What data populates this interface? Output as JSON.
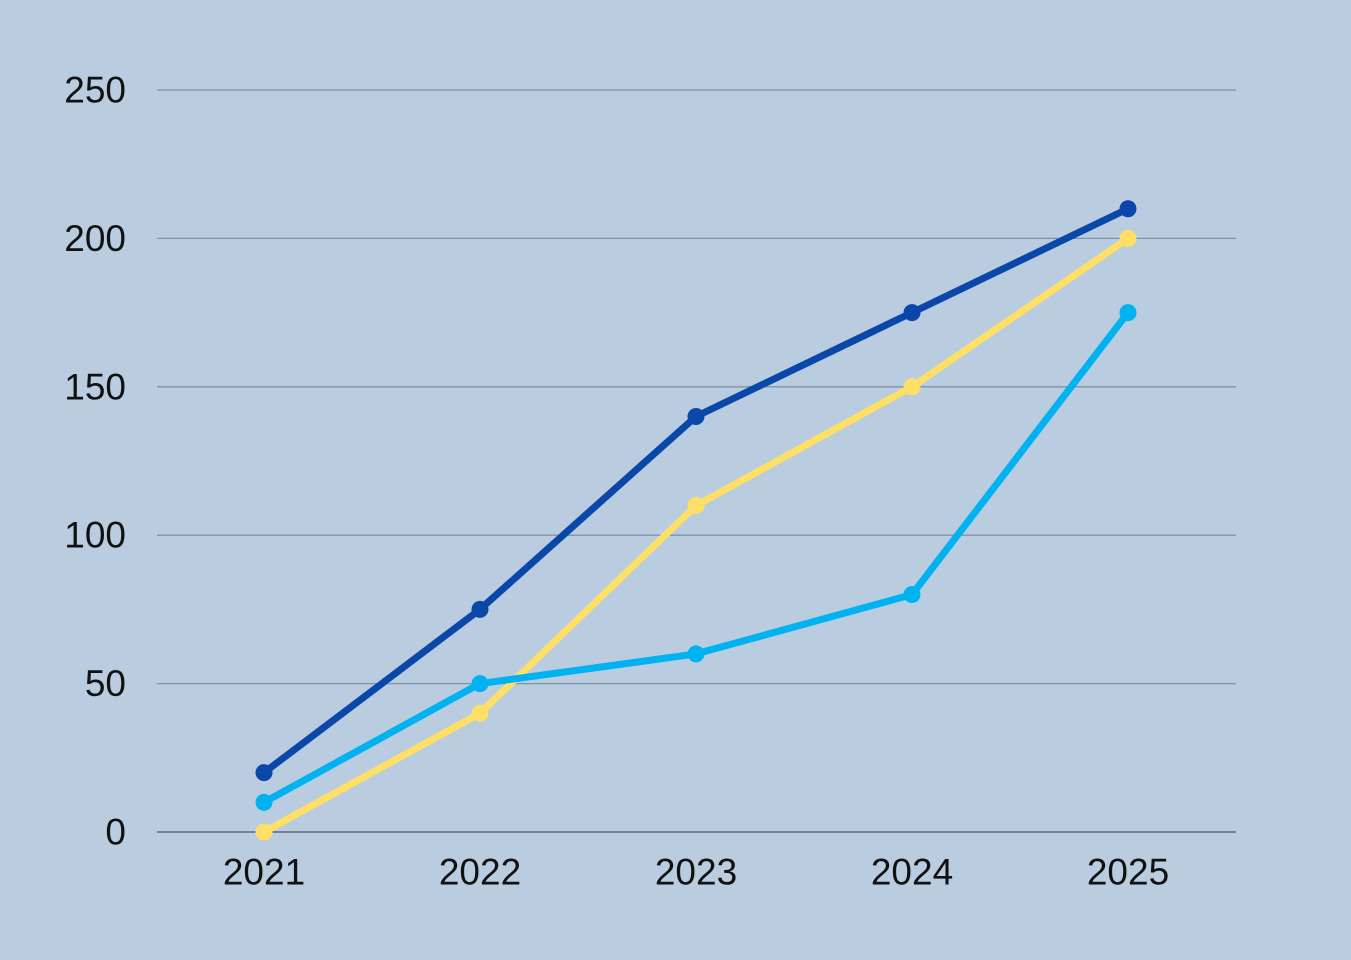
{
  "chart_data": {
    "type": "line",
    "title": "",
    "xlabel": "",
    "ylabel": "",
    "categories": [
      "2021",
      "2022",
      "2023",
      "2024",
      "2025"
    ],
    "ylim": [
      0,
      250
    ],
    "yticks": [
      0,
      50,
      100,
      150,
      200,
      250
    ],
    "grid": true,
    "legend": "none",
    "background": "#b9cce0",
    "gridline_color": "#7f93a6",
    "series": [
      {
        "color": "#0a47a9",
        "values": [
          20,
          75,
          140,
          175,
          210
        ]
      },
      {
        "color": "#ffe066",
        "values": [
          0,
          40,
          110,
          150,
          200
        ]
      },
      {
        "color": "#00b2f0",
        "values": [
          10,
          50,
          60,
          80,
          175
        ]
      }
    ]
  }
}
